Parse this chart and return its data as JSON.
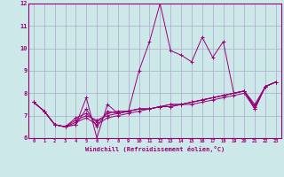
{
  "xlabel": "Windchill (Refroidissement éolien,°C)",
  "ylabel": "",
  "xlim": [
    -0.5,
    23.5
  ],
  "ylim": [
    6,
    12
  ],
  "yticks": [
    6,
    7,
    8,
    9,
    10,
    11,
    12
  ],
  "xticks": [
    0,
    1,
    2,
    3,
    4,
    5,
    6,
    7,
    8,
    9,
    10,
    11,
    12,
    13,
    14,
    15,
    16,
    17,
    18,
    19,
    20,
    21,
    22,
    23
  ],
  "bg_color": "#cce8e8",
  "grid_color": "#aaaacc",
  "line_color": "#990077",
  "series": [
    [
      7.6,
      7.2,
      6.6,
      6.5,
      6.6,
      7.8,
      6.0,
      7.5,
      7.1,
      7.2,
      9.0,
      10.3,
      12.0,
      9.9,
      9.7,
      9.4,
      10.5,
      9.6,
      10.3,
      8.0,
      8.1,
      7.3,
      8.3,
      8.5
    ],
    [
      7.6,
      7.2,
      6.6,
      6.5,
      6.6,
      7.3,
      6.5,
      7.2,
      7.1,
      7.2,
      7.3,
      7.3,
      7.4,
      7.4,
      7.5,
      7.5,
      7.6,
      7.7,
      7.8,
      7.9,
      8.0,
      7.3,
      8.3,
      8.5
    ],
    [
      7.6,
      7.2,
      6.6,
      6.5,
      6.8,
      7.0,
      6.8,
      7.0,
      7.1,
      7.2,
      7.3,
      7.3,
      7.4,
      7.5,
      7.5,
      7.6,
      7.7,
      7.8,
      7.9,
      8.0,
      8.1,
      7.4,
      8.3,
      8.5
    ],
    [
      7.6,
      7.2,
      6.6,
      6.5,
      6.9,
      7.1,
      6.7,
      7.1,
      7.2,
      7.2,
      7.3,
      7.3,
      7.4,
      7.4,
      7.5,
      7.6,
      7.7,
      7.8,
      7.9,
      8.0,
      8.1,
      7.5,
      8.3,
      8.5
    ],
    [
      7.6,
      7.2,
      6.6,
      6.5,
      6.7,
      6.9,
      6.6,
      6.9,
      7.0,
      7.1,
      7.2,
      7.3,
      7.4,
      7.5,
      7.5,
      7.6,
      7.7,
      7.8,
      7.9,
      8.0,
      8.1,
      7.4,
      8.3,
      8.5
    ]
  ]
}
